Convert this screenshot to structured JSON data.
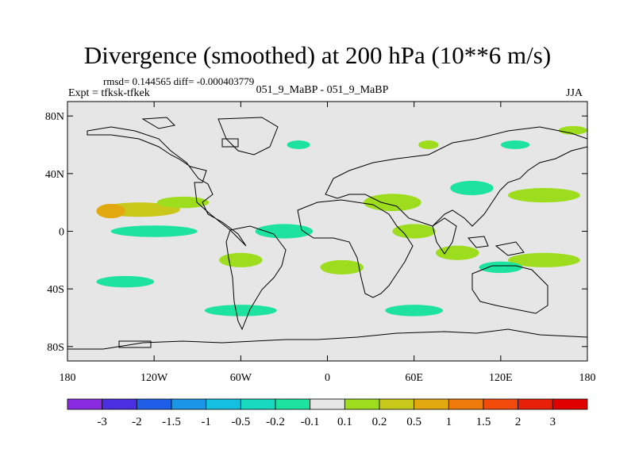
{
  "title": "Divergence (smoothed) at 200 hPa (10**6 m/s)",
  "stats": "rmsd= 0.144565 diff= -0.000403779",
  "experiment": "Expt = tfksk-tfkek",
  "subtitle": "051_9_MaBP - 051_9_MaBP",
  "season": "JJA",
  "chart_data": {
    "type": "heatmap",
    "projection": "cylindrical-equidistant",
    "title": "Divergence (smoothed) at 200 hPa (10**6 m/s)",
    "xlabel": "",
    "ylabel": "",
    "xlim": [
      -180,
      180
    ],
    "ylim": [
      -90,
      90
    ],
    "x_ticks": [
      {
        "value": -180,
        "label": "180"
      },
      {
        "value": -120,
        "label": "120W"
      },
      {
        "value": -60,
        "label": "60W"
      },
      {
        "value": 0,
        "label": "0"
      },
      {
        "value": 60,
        "label": "60E"
      },
      {
        "value": 120,
        "label": "120E"
      },
      {
        "value": 180,
        "label": "180"
      }
    ],
    "y_ticks": [
      {
        "value": 80,
        "label": "80N"
      },
      {
        "value": 40,
        "label": "40N"
      },
      {
        "value": 0,
        "label": "0"
      },
      {
        "value": -40,
        "label": "40S"
      },
      {
        "value": -80,
        "label": "80S"
      }
    ],
    "colorbar": {
      "levels": [
        "-3",
        "-2",
        "-1.5",
        "-1",
        "-0.5",
        "-0.2",
        "-0.1",
        "0.1",
        "0.2",
        "0.5",
        "1",
        "1.5",
        "2",
        "3"
      ],
      "colors": [
        "#8a2be2",
        "#4b2ee0",
        "#1f5fe8",
        "#1a96e6",
        "#15bfe0",
        "#19d8c0",
        "#1ee3a0",
        "#e6e6e6",
        "#9edc1e",
        "#c8c81a",
        "#e2a810",
        "#ee7a0c",
        "#f24a0a",
        "#e82008",
        "#e00000"
      ]
    },
    "features": [
      {
        "lon": -130,
        "lat": 15,
        "rx": 28,
        "ry": 5,
        "class": "0.5 to 1"
      },
      {
        "lon": -150,
        "lat": 14,
        "rx": 10,
        "ry": 5,
        "class": "1 to 1.5"
      },
      {
        "lon": -100,
        "lat": 20,
        "rx": 18,
        "ry": 4,
        "class": "0.2 to 0.5"
      },
      {
        "lon": 45,
        "lat": 20,
        "rx": 20,
        "ry": 6,
        "class": "0.2 to 0.5"
      },
      {
        "lon": 150,
        "lat": 25,
        "rx": 25,
        "ry": 5,
        "class": "0.2 to 0.5"
      },
      {
        "lon": 60,
        "lat": 0,
        "rx": 15,
        "ry": 5,
        "class": "0.2 to 0.5"
      },
      {
        "lon": 150,
        "lat": -20,
        "rx": 25,
        "ry": 5,
        "class": "0.2 to 0.5"
      },
      {
        "lon": -60,
        "lat": -20,
        "rx": 15,
        "ry": 5,
        "class": "0.2 to 0.5"
      },
      {
        "lon": 10,
        "lat": -25,
        "rx": 15,
        "ry": 5,
        "class": "0.2 to 0.5"
      },
      {
        "lon": 90,
        "lat": -15,
        "rx": 15,
        "ry": 5,
        "class": "0.2 to 0.5"
      },
      {
        "lon": -120,
        "lat": 0,
        "rx": 30,
        "ry": 4,
        "class": "-0.2 to -0.1"
      },
      {
        "lon": -30,
        "lat": 0,
        "rx": 20,
        "ry": 5,
        "class": "-0.2 to -0.1"
      },
      {
        "lon": 100,
        "lat": 30,
        "rx": 15,
        "ry": 5,
        "class": "-0.2 to -0.1"
      },
      {
        "lon": 120,
        "lat": -25,
        "rx": 15,
        "ry": 4,
        "class": "-0.2 to -0.1"
      },
      {
        "lon": -60,
        "lat": -55,
        "rx": 25,
        "ry": 4,
        "class": "-0.2 to -0.1"
      },
      {
        "lon": 60,
        "lat": -55,
        "rx": 20,
        "ry": 4,
        "class": "-0.2 to -0.1"
      },
      {
        "lon": -140,
        "lat": -35,
        "rx": 20,
        "ry": 4,
        "class": "-0.2 to -0.1"
      },
      {
        "lon": 170,
        "lat": 70,
        "rx": 10,
        "ry": 3,
        "class": "0.2 to 0.5"
      },
      {
        "lon": 130,
        "lat": 60,
        "rx": 10,
        "ry": 3,
        "class": "-0.2 to -0.1"
      },
      {
        "lon": -20,
        "lat": 60,
        "rx": 8,
        "ry": 3,
        "class": "-0.2 to -0.1"
      },
      {
        "lon": 70,
        "lat": 60,
        "rx": 7,
        "ry": 3,
        "class": "0.2 to 0.5"
      }
    ]
  }
}
